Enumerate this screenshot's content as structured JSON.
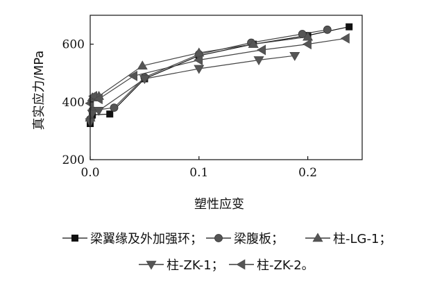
{
  "chart_data": {
    "type": "line",
    "title": "",
    "xlabel": "塑性应变",
    "ylabel": "真实应力/MPa",
    "xlim": [
      0,
      0.25
    ],
    "ylim": [
      200,
      700
    ],
    "xticks": [
      0.0,
      0.1,
      0.2
    ],
    "xtick_labels": [
      "0.0",
      "0.1",
      "0.2"
    ],
    "yticks": [
      200,
      400,
      600
    ],
    "ytick_labels": [
      "200",
      "400",
      "600"
    ],
    "grid": false,
    "legend_position": "bottom",
    "series": [
      {
        "name": "梁翼缘及外加强环；",
        "marker": "square",
        "x": [
          0.0,
          0.002,
          0.018,
          0.05,
          0.1,
          0.15,
          0.2,
          0.238
        ],
        "y": [
          325,
          355,
          358,
          480,
          560,
          600,
          630,
          660
        ]
      },
      {
        "name": "梁腹板；",
        "marker": "circle",
        "x": [
          0.0,
          0.002,
          0.022,
          0.05,
          0.1,
          0.148,
          0.195,
          0.218
        ],
        "y": [
          340,
          370,
          380,
          485,
          565,
          605,
          635,
          650
        ]
      },
      {
        "name": "柱-LG-1；",
        "marker": "triangle-up",
        "x": [
          0.0,
          0.002,
          0.008,
          0.048,
          0.1,
          0.15,
          0.2
        ],
        "y": [
          345,
          415,
          420,
          525,
          570,
          600,
          625
        ]
      },
      {
        "name": "柱-ZK-1；",
        "marker": "triangle-down",
        "x": [
          0.0,
          0.002,
          0.008,
          0.05,
          0.1,
          0.155,
          0.188
        ],
        "y": [
          330,
          360,
          370,
          480,
          515,
          545,
          560
        ]
      },
      {
        "name": "柱-ZK-2。",
        "marker": "triangle-left",
        "x": [
          0.0,
          0.003,
          0.008,
          0.04,
          0.1,
          0.158,
          0.2,
          0.235
        ],
        "y": [
          395,
          420,
          410,
          490,
          545,
          580,
          600,
          620
        ]
      }
    ]
  }
}
